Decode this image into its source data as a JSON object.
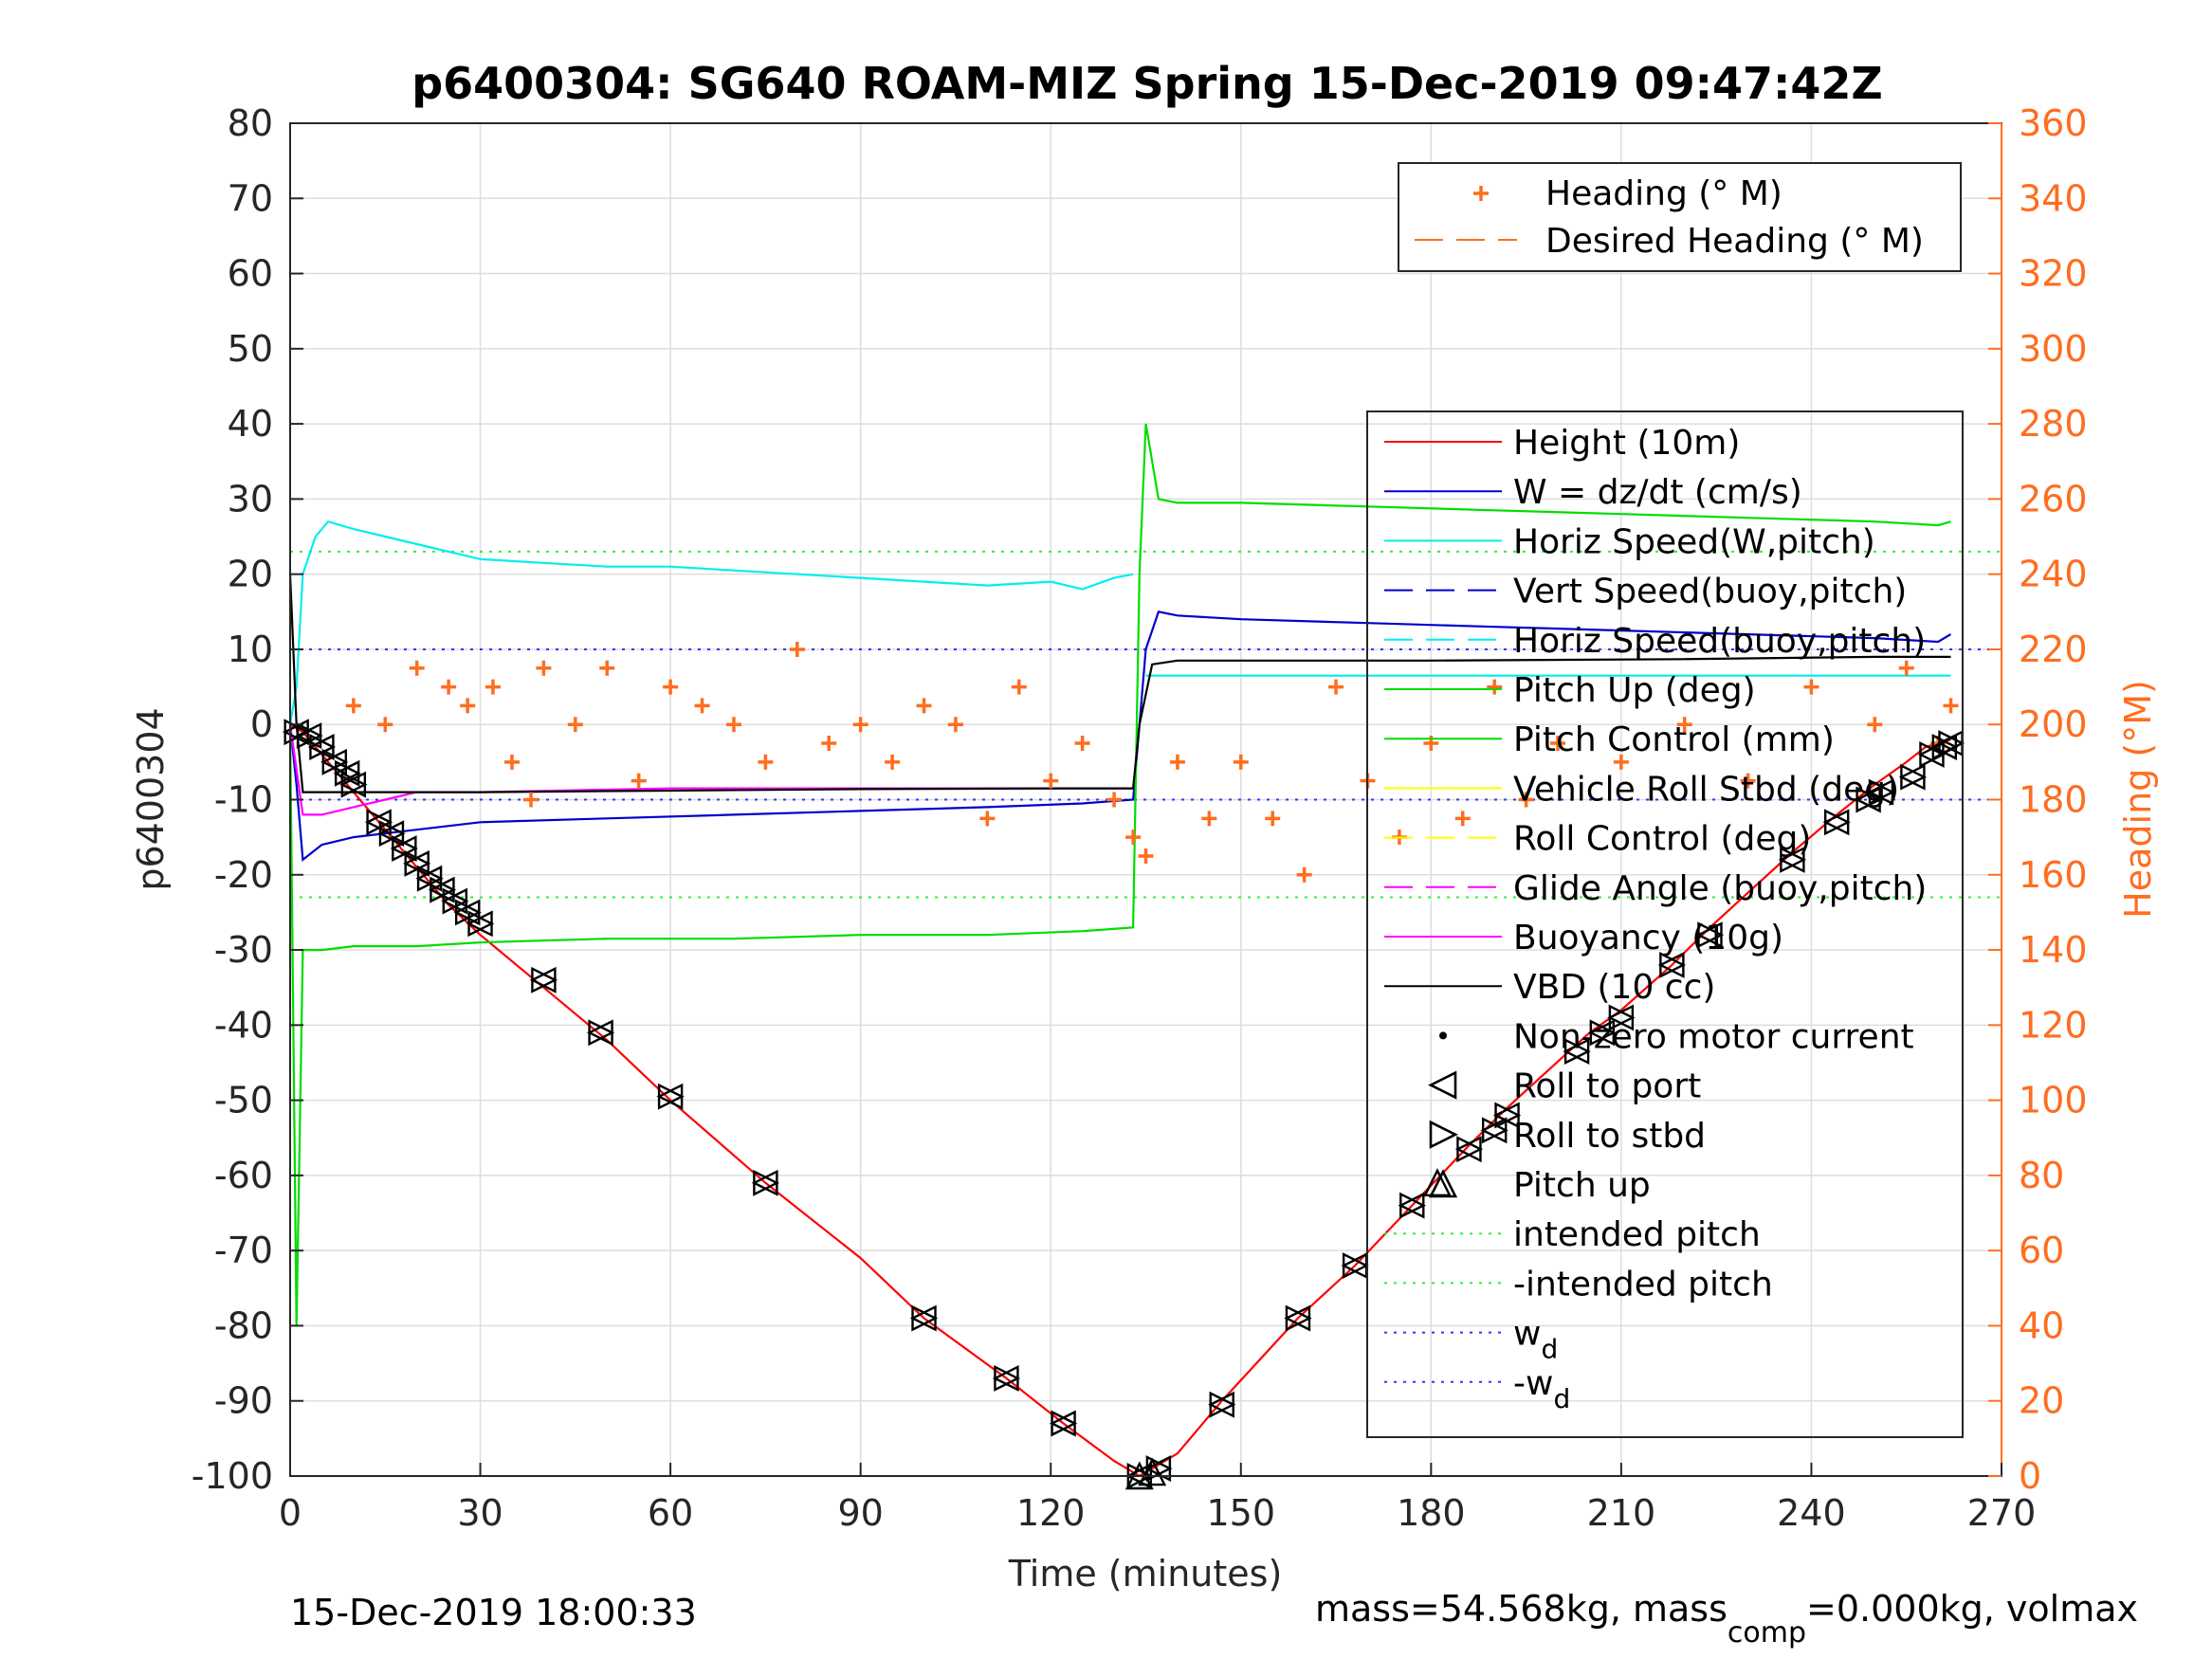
{
  "figure": {
    "title": "p6400304: SG640 ROAM-MIZ Spring 15-Dec-2019 09:47:42Z",
    "footer_left": "15-Dec-2019 18:00:33",
    "footer_right_a": "mass=54.568kg, mass",
    "footer_right_sub": "comp",
    "footer_right_b": "=0.000kg, volmax"
  },
  "colors": {
    "height": "#ff0000",
    "w": "#0000cc",
    "horiz": "#00eeee",
    "pitch": "#00dd00",
    "roll": "#ffff00",
    "glide": "#ff00ff",
    "vbd": "#000000",
    "heading": "#ff6d1f",
    "intended": "#33ee33",
    "wd": "#3333ff",
    "grid": "#dddddd"
  },
  "chart_data": {
    "type": "line",
    "xlabel": "Time (minutes)",
    "ylabel_left": "p6400304",
    "ylabel_right": "Heading (°M)",
    "xlim": [
      0,
      270
    ],
    "ylim_left": [
      -100,
      80
    ],
    "ylim_right": [
      0,
      360
    ],
    "xticks": [
      "0",
      "30",
      "60",
      "90",
      "120",
      "150",
      "180",
      "210",
      "240",
      "270"
    ],
    "yticks_left": [
      "80",
      "70",
      "60",
      "50",
      "40",
      "30",
      "20",
      "10",
      "0",
      "-10",
      "-20",
      "-30",
      "-40",
      "-50",
      "-60",
      "-70",
      "-80",
      "-90",
      "-100"
    ],
    "yticks_right": [
      "360",
      "340",
      "320",
      "300",
      "280",
      "260",
      "240",
      "220",
      "200",
      "180",
      "160",
      "140",
      "120",
      "100",
      "80",
      "60",
      "40",
      "20",
      "0"
    ],
    "grid": true,
    "legend_heading": {
      "placement": "top-right",
      "entries": [
        "Heading (° M)",
        "Desired Heading (° M)"
      ]
    },
    "legend_main": {
      "placement": "right",
      "entries": [
        "Height (10m)",
        "W = dz/dt (cm/s)",
        "Horiz Speed(W,pitch)",
        "Vert Speed(buoy,pitch)",
        "Horiz Speed(buoy,pitch)",
        "Pitch Up (deg)",
        "Pitch Control (mm)",
        "Vehicle Roll Stbd (deg)",
        "Roll Control (deg)",
        "Glide Angle (buoy,pitch)",
        "Buoyancy (10g)",
        "VBD (10 cc)",
        "Non-zero motor current",
        "Roll to port",
        "Roll to stbd",
        "Pitch up",
        "intended pitch",
        "-intended pitch",
        "w",
        "-w"
      ],
      "subscript_d": "d"
    },
    "constants": {
      "intended_pitch": 23,
      "wd": 10
    },
    "series": [
      {
        "name": "Height (10m)",
        "x": [
          0,
          1,
          2,
          5,
          10,
          15,
          20,
          25,
          30,
          40,
          50,
          60,
          75,
          90,
          100,
          113,
          122,
          130,
          134,
          136,
          140,
          147,
          159,
          168,
          177,
          186,
          192,
          205,
          210,
          218,
          224,
          237,
          244,
          250,
          255,
          258,
          262
        ],
        "y": [
          0,
          -0.5,
          -1,
          -4,
          -9,
          -14,
          -19,
          -24,
          -28,
          -35,
          -42,
          -50,
          -61,
          -71,
          -79,
          -87,
          -93,
          -98,
          -100,
          -99,
          -97,
          -90,
          -79,
          -72,
          -64,
          -56,
          -51,
          -41,
          -38,
          -32,
          -27,
          -17,
          -12,
          -8,
          -5,
          -3,
          -2
        ]
      },
      {
        "name": "W = dz/dt (cm/s)",
        "x": [
          0,
          1,
          2,
          5,
          10,
          20,
          30,
          50,
          70,
          90,
          110,
          125,
          133,
          134,
          135,
          137,
          140,
          150,
          170,
          190,
          210,
          230,
          250,
          260,
          262
        ],
        "y": [
          0,
          -8,
          -18,
          -16,
          -15,
          -14,
          -13,
          -12.5,
          -12,
          -11.5,
          -11,
          -10.5,
          -10,
          0,
          10,
          15,
          14.5,
          14,
          13.5,
          13,
          12.5,
          12,
          11.5,
          11,
          12
        ]
      },
      {
        "name": "Horiz Speed(W,pitch)",
        "x": [
          0,
          1,
          2,
          4,
          6,
          10,
          15,
          20,
          25,
          30,
          40,
          50,
          60,
          70,
          80,
          90,
          100,
          110,
          120,
          125,
          130,
          133
        ],
        "y": [
          0,
          5,
          20,
          25,
          27,
          26,
          25,
          24,
          23,
          22,
          21.5,
          21,
          21,
          20.5,
          20,
          19.5,
          19,
          18.5,
          19,
          18,
          19.5,
          20
        ]
      },
      {
        "name": "Horiz Speed(buoy,pitch)",
        "x": [
          135,
          150,
          180,
          210,
          240,
          262
        ],
        "y": [
          6.5,
          6.5,
          6.5,
          6.5,
          6.5,
          6.5
        ]
      },
      {
        "name": "Pitch Control (mm)",
        "x": [
          0,
          1,
          2,
          5,
          10,
          20,
          30,
          50,
          70,
          90,
          110,
          125,
          133,
          134,
          135,
          137,
          140,
          150,
          170,
          190,
          210,
          230,
          250,
          260,
          262
        ],
        "y": [
          0,
          -80,
          -30,
          -30,
          -29.5,
          -29.5,
          -29,
          -28.5,
          -28.5,
          -28,
          -28,
          -27.5,
          -27,
          20,
          40,
          30,
          29.5,
          29.5,
          29,
          28.5,
          28,
          27.5,
          27,
          26.5,
          27
        ]
      },
      {
        "name": "Buoyancy (10g)",
        "x": [
          0,
          2,
          5,
          10,
          15,
          20,
          30,
          60,
          90,
          120,
          133
        ],
        "y": [
          0,
          -12,
          -12,
          -11,
          -10,
          -9,
          -9,
          -8.5,
          -8.5,
          -8.5,
          -8.5
        ]
      },
      {
        "name": "VBD (10 cc)",
        "x": [
          0,
          1,
          2,
          30,
          60,
          90,
          120,
          133,
          134,
          136,
          140,
          180,
          220,
          250,
          262
        ],
        "y": [
          20,
          0,
          -9,
          -9,
          -8.8,
          -8.6,
          -8.5,
          -8.5,
          0,
          8,
          8.5,
          8.5,
          8.7,
          9,
          9
        ]
      },
      {
        "name": "Heading (° M)",
        "axis": "right",
        "x": [
          10,
          15,
          20,
          25,
          28,
          32,
          35,
          38,
          40,
          45,
          50,
          55,
          60,
          65,
          70,
          75,
          80,
          85,
          90,
          95,
          100,
          105,
          110,
          115,
          120,
          125,
          130,
          133,
          135,
          140,
          145,
          150,
          155,
          160,
          165,
          170,
          175,
          180,
          185,
          190,
          195,
          200,
          210,
          220,
          230,
          240,
          250,
          255,
          260,
          262
        ],
        "y": [
          205,
          200,
          215,
          210,
          205,
          210,
          190,
          180,
          215,
          200,
          215,
          185,
          210,
          205,
          200,
          190,
          220,
          195,
          200,
          190,
          205,
          200,
          175,
          210,
          185,
          195,
          180,
          170,
          165,
          190,
          175,
          190,
          175,
          160,
          210,
          185,
          170,
          195,
          175,
          210,
          180,
          195,
          190,
          200,
          185,
          210,
          200,
          215,
          195,
          205
        ]
      }
    ],
    "markers": {
      "roll_x": [
        1,
        3,
        5,
        7,
        9,
        10,
        14,
        16,
        18,
        20,
        22,
        24,
        26,
        28,
        30,
        40,
        49,
        60,
        75,
        100,
        113,
        122,
        134,
        137,
        147,
        159,
        168,
        177,
        186,
        190,
        192,
        203,
        207,
        210,
        218,
        224,
        237,
        244,
        249,
        251,
        256,
        259,
        261,
        262
      ],
      "roll_y": [
        -1,
        -1.5,
        -3,
        -5,
        -6.5,
        -8,
        -13,
        -14.5,
        -16.5,
        -18.5,
        -20.5,
        -22,
        -23.5,
        -25,
        -26.5,
        -34,
        -41,
        -49.5,
        -61,
        -79,
        -87,
        -93,
        -100,
        -99,
        -90.5,
        -79,
        -72,
        -64,
        -56.5,
        -54,
        -52,
        -43.5,
        -41,
        -39,
        -32,
        -28,
        -18,
        -13,
        -10,
        -9,
        -7,
        -4,
        -3,
        -2.5
      ],
      "pitch_up_x": [
        134,
        136,
        181
      ],
      "pitch_up_y": [
        -100,
        -99.5,
        -61
      ]
    }
  }
}
